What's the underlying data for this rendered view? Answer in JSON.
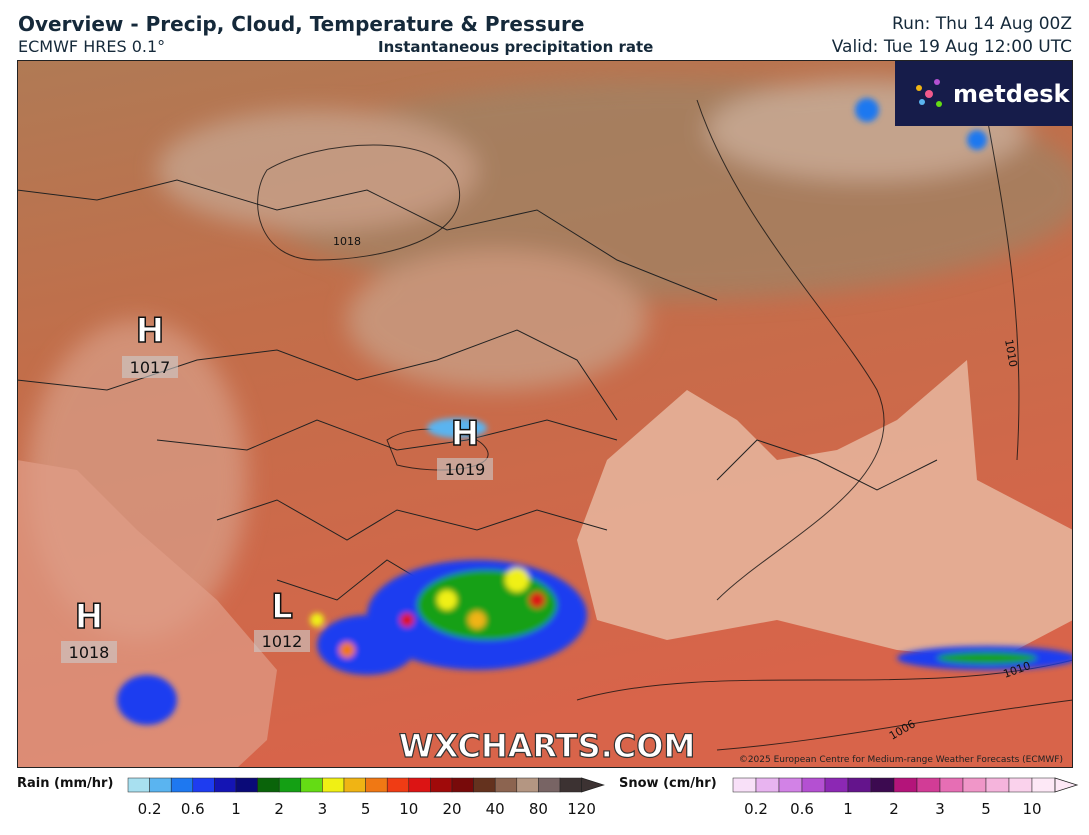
{
  "header": {
    "title": "Overview - Precip, Cloud, Temperature & Pressure",
    "model": "ECMWF HRES 0.1°",
    "product": "Instantaneous precipitation rate",
    "run": "Run: Thu 14 Aug 00Z",
    "valid": "Valid: Tue 19 Aug 12:00 UTC"
  },
  "logo": "metdesk",
  "map": {
    "pressure_centres": [
      {
        "letter": "H",
        "value": 1017
      },
      {
        "letter": "H",
        "value": 1019
      },
      {
        "letter": "H",
        "value": 1018
      },
      {
        "letter": "L",
        "value": 1012
      }
    ],
    "isobar_labels": [
      1018,
      1010,
      1010,
      1006
    ],
    "watermark": "WXCHARTS.COM",
    "copyright": "©2025 European Centre for Medium-range Weather Forecasts (ECMWF)"
  },
  "legend": {
    "rain": {
      "label": "Rain (mm/hr)",
      "colors": [
        "#a8e0f0",
        "#5ab4f0",
        "#1e78f0",
        "#1e3cf0",
        "#1414b4",
        "#0a0a78",
        "#0a640a",
        "#14a014",
        "#64dc14",
        "#f0f014",
        "#f0b414",
        "#f07814",
        "#f03c14",
        "#dc1414",
        "#a00a0a",
        "#780a0a",
        "#64321e",
        "#8c6450",
        "#b49682",
        "#786464",
        "#3c3232"
      ],
      "ticks": [
        0.2,
        0.6,
        1,
        2,
        3,
        5,
        10,
        20,
        40,
        80,
        120
      ]
    },
    "snow": {
      "label": "Snow (cm/hr)",
      "colors": [
        "#f8e0f8",
        "#e8b4f0",
        "#d282e6",
        "#b450d2",
        "#8c28b4",
        "#64148c",
        "#3c0a50",
        "#b4147a",
        "#d23c96",
        "#e66eb4",
        "#f096c8",
        "#f5b4dc",
        "#fad2ec",
        "#fde8f6"
      ],
      "ticks": [
        0.2,
        0.6,
        1,
        2,
        3,
        5,
        10
      ]
    }
  }
}
